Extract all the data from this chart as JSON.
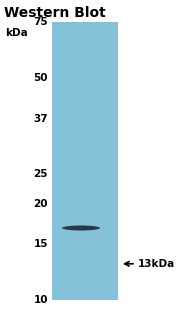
{
  "title": "Western Blot",
  "title_fontsize": 10,
  "title_fontweight": "bold",
  "bg_color": "#ffffff",
  "blot_color": "#85c1d8",
  "band_color": "#1c2e3c",
  "ylabel": "kDa",
  "ylabel_fontsize": 7.5,
  "marker_labels": [
    "75",
    "50",
    "37",
    "25",
    "20",
    "15",
    "10"
  ],
  "marker_fontsize": 7.5,
  "arrow_label": "13kDa",
  "arrow_label_fontsize": 7.5,
  "figsize": [
    1.9,
    3.09
  ],
  "dpi": 100
}
